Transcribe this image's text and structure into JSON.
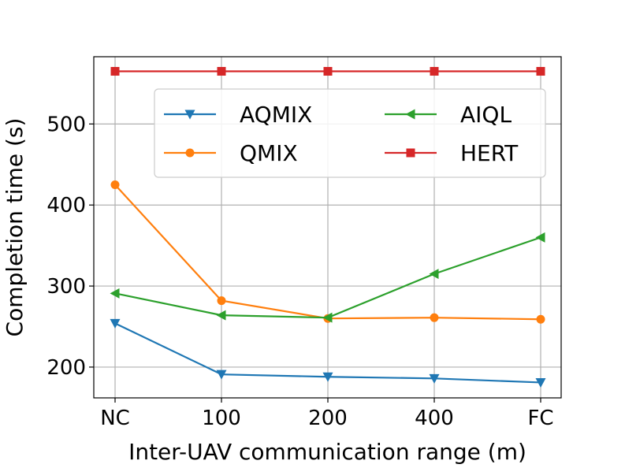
{
  "chart_data": {
    "type": "line",
    "title": "",
    "xlabel": "Inter-UAV communication range (m)",
    "ylabel": "Completion time (s)",
    "categories": [
      "NC",
      "100",
      "200",
      "400",
      "FC"
    ],
    "yticks": [
      200,
      300,
      400,
      500
    ],
    "ylim": [
      162,
      583
    ],
    "grid": true,
    "legend": {
      "position": "upper-right",
      "columns": 2
    },
    "series": [
      {
        "name": "AQMIX",
        "color": "#1f77b4",
        "marker": "triangle-down",
        "values": [
          254,
          191,
          188,
          186,
          181
        ]
      },
      {
        "name": "QMIX",
        "color": "#ff7f0e",
        "marker": "circle",
        "values": [
          425,
          282,
          260,
          261,
          259
        ]
      },
      {
        "name": "AIQL",
        "color": "#2ca02c",
        "marker": "triangle-left",
        "values": [
          291,
          264,
          261,
          315,
          360
        ]
      },
      {
        "name": "HERT",
        "color": "#d62728",
        "marker": "square",
        "values": [
          565,
          565,
          565,
          565,
          565
        ]
      }
    ]
  }
}
